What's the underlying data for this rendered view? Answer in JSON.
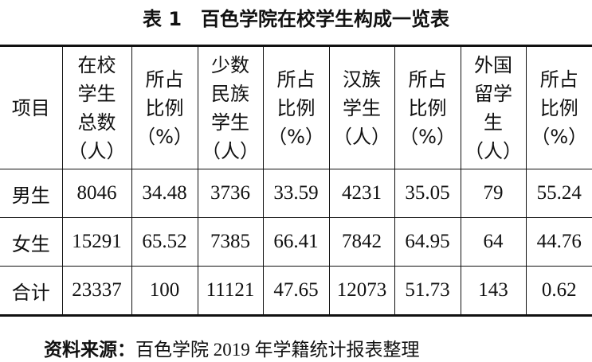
{
  "header": {
    "title": "表 1　百色学院在校学生构成一览表"
  },
  "table": {
    "header": [
      [
        "项目"
      ],
      [
        "在校",
        "学生",
        "总数",
        "（人）"
      ],
      [
        "所占",
        "比例",
        "（%）"
      ],
      [
        "少数",
        "民族",
        "学生",
        "（人）"
      ],
      [
        "所占",
        "比例",
        "（%）"
      ],
      [
        "汉族",
        "学生",
        "（人）"
      ],
      [
        "所占",
        "比例",
        "（%）"
      ],
      [
        "外国",
        "留学",
        "生",
        "（人）"
      ],
      [
        "所占",
        "比例",
        "（%）"
      ]
    ],
    "rows": [
      [
        "男生",
        "8046",
        "34.48",
        "3736",
        "33.59",
        "4231",
        "35.05",
        "79",
        "55.24"
      ],
      [
        "女生",
        "15291",
        "65.52",
        "7385",
        "66.41",
        "7842",
        "64.95",
        "64",
        "44.76"
      ],
      [
        "合计",
        "23337",
        "100",
        "11121",
        "47.65",
        "12073",
        "51.73",
        "143",
        "0.62"
      ]
    ]
  },
  "source": {
    "label": "资料来源：",
    "text": "百色学院 2019 年学籍统计报表整理"
  }
}
